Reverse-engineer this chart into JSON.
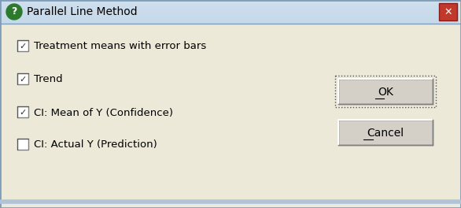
{
  "title": "Parallel Line Method",
  "title_icon_color": "#2d7a2d",
  "title_bar_color": "#b8cce4",
  "bg_color": "#e8e8e8",
  "dialog_bg": "#e8e8e8",
  "close_btn_color": "#c0392b",
  "checkboxes": [
    {
      "label": "Treatment means with error bars",
      "checked": true
    },
    {
      "label": "Trend",
      "checked": true
    },
    {
      "label": "CI: Mean of Y (Confidence)",
      "checked": true
    },
    {
      "label": "CI: Actual Y (Prediction)",
      "checked": false
    }
  ],
  "ok_label": "OK",
  "cancel_label": "Cancel",
  "figw": 5.86,
  "figh": 2.64,
  "dpi": 100
}
